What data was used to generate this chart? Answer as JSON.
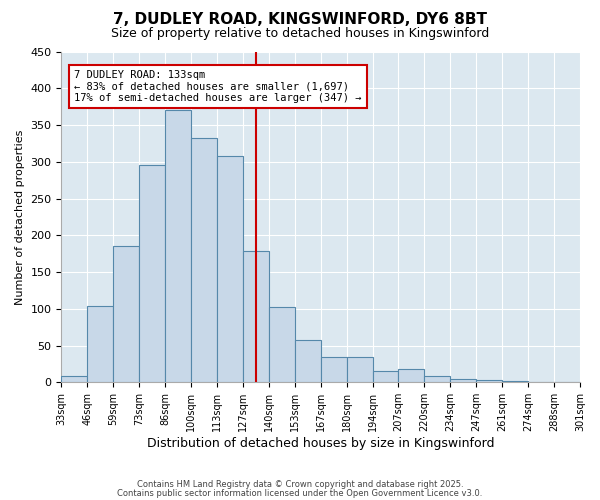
{
  "title": "7, DUDLEY ROAD, KINGSWINFORD, DY6 8BT",
  "subtitle": "Size of property relative to detached houses in Kingswinford",
  "xlabel": "Distribution of detached houses by size in Kingswinford",
  "ylabel": "Number of detached properties",
  "bin_labels": [
    "33sqm",
    "46sqm",
    "59sqm",
    "73sqm",
    "86sqm",
    "100sqm",
    "113sqm",
    "127sqm",
    "140sqm",
    "153sqm",
    "167sqm",
    "180sqm",
    "194sqm",
    "207sqm",
    "220sqm",
    "234sqm",
    "247sqm",
    "261sqm",
    "274sqm",
    "288sqm",
    "301sqm"
  ],
  "bar_heights": [
    8,
    104,
    185,
    295,
    370,
    333,
    308,
    178,
    103,
    58,
    35,
    35,
    15,
    18,
    8,
    5,
    3,
    2,
    1,
    0
  ],
  "bar_color": "#c8d8e8",
  "bar_edge_color": "#5588aa",
  "vline_x": 7.5,
  "pct_smaller": 83,
  "count_smaller": 1697,
  "pct_larger": 17,
  "count_larger": 347,
  "ylim": [
    0,
    450
  ],
  "yticks": [
    0,
    50,
    100,
    150,
    200,
    250,
    300,
    350,
    400,
    450
  ],
  "vline_color": "#cc0000",
  "footer1": "Contains HM Land Registry data © Crown copyright and database right 2025.",
  "footer2": "Contains public sector information licensed under the Open Government Licence v3.0.",
  "background_color": "#dce8f0"
}
